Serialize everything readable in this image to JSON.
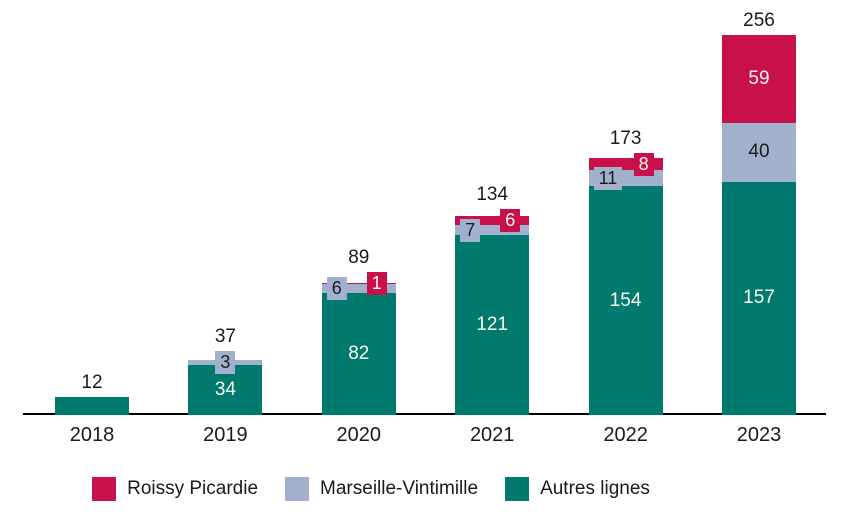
{
  "chart_data": {
    "type": "bar",
    "stacked": true,
    "title": "",
    "xlabel": "",
    "ylabel": "",
    "grid": false,
    "legend_position": "bottom",
    "ylim": [
      0,
      256
    ],
    "categories": [
      "2018",
      "2019",
      "2020",
      "2021",
      "2022",
      "2023"
    ],
    "series": [
      {
        "name": "Roissy Picardie",
        "color": "#C8114A",
        "values": [
          0,
          0,
          1,
          6,
          8,
          59
        ]
      },
      {
        "name": "Marseille-Vintimille",
        "color": "#A1B1CD",
        "values": [
          0,
          3,
          6,
          7,
          11,
          40
        ]
      },
      {
        "name": "Autres lignes",
        "color": "#007A6E",
        "values": [
          12,
          34,
          82,
          121,
          154,
          157
        ]
      }
    ],
    "totals": [
      12,
      37,
      89,
      134,
      173,
      256
    ]
  },
  "colors": {
    "total_label_text": "#1a1a1a",
    "light_segment_text": "#FCF8EE",
    "dark_segment_text": "#1a1a1a",
    "axis_line": "#000000",
    "background": "#ffffff"
  }
}
